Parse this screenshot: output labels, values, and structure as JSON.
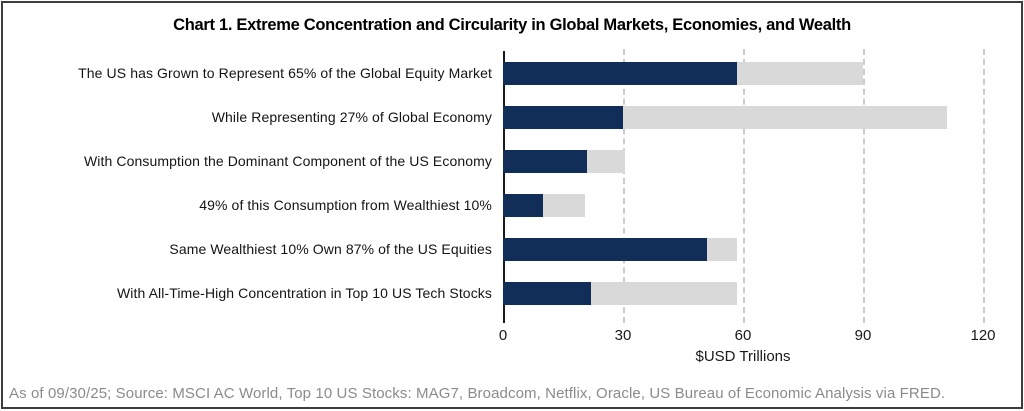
{
  "chart_data": {
    "type": "bar",
    "orientation": "horizontal",
    "stacked": true,
    "title": "Chart 1. Extreme Concentration and Circularity in Global Markets, Economies, and Wealth",
    "categories": [
      "The US has Grown to Represent 65% of the Global Equity Market",
      "While Representing 27% of Global Economy",
      "With Consumption the Dominant Component of the US Economy",
      "49% of this Consumption from Wealthiest 10%",
      "Same Wealthiest 10% Own 87% of the US Equities",
      "With All-Time-High Concentration in Top 10 US Tech Stocks"
    ],
    "series": [
      {
        "name": "navy",
        "color": "#102e58",
        "values": [
          58.5,
          30,
          21,
          10,
          51,
          22
        ]
      },
      {
        "name": "gray",
        "color": "#d9d9d9",
        "values": [
          31.5,
          81,
          9.5,
          10.5,
          7.5,
          36.5
        ]
      }
    ],
    "bar_totals": [
      90,
      111,
      30.5,
      20.5,
      58.5,
      58.5
    ],
    "xlabel": "$USD Trillions",
    "xlim": [
      0,
      120
    ],
    "xtick_labels": [
      "0",
      "30",
      "60",
      "90",
      "120"
    ],
    "grid": "vertical dashed at 30, 60, 90, 120",
    "legend": "none"
  },
  "footer": {
    "source_note": "As of 09/30/25; Source: MSCI AC World, Top 10 US Stocks: MAG7, Broadcom, Netflix, Oracle, US Bureau of Economic Analysis via FRED."
  }
}
